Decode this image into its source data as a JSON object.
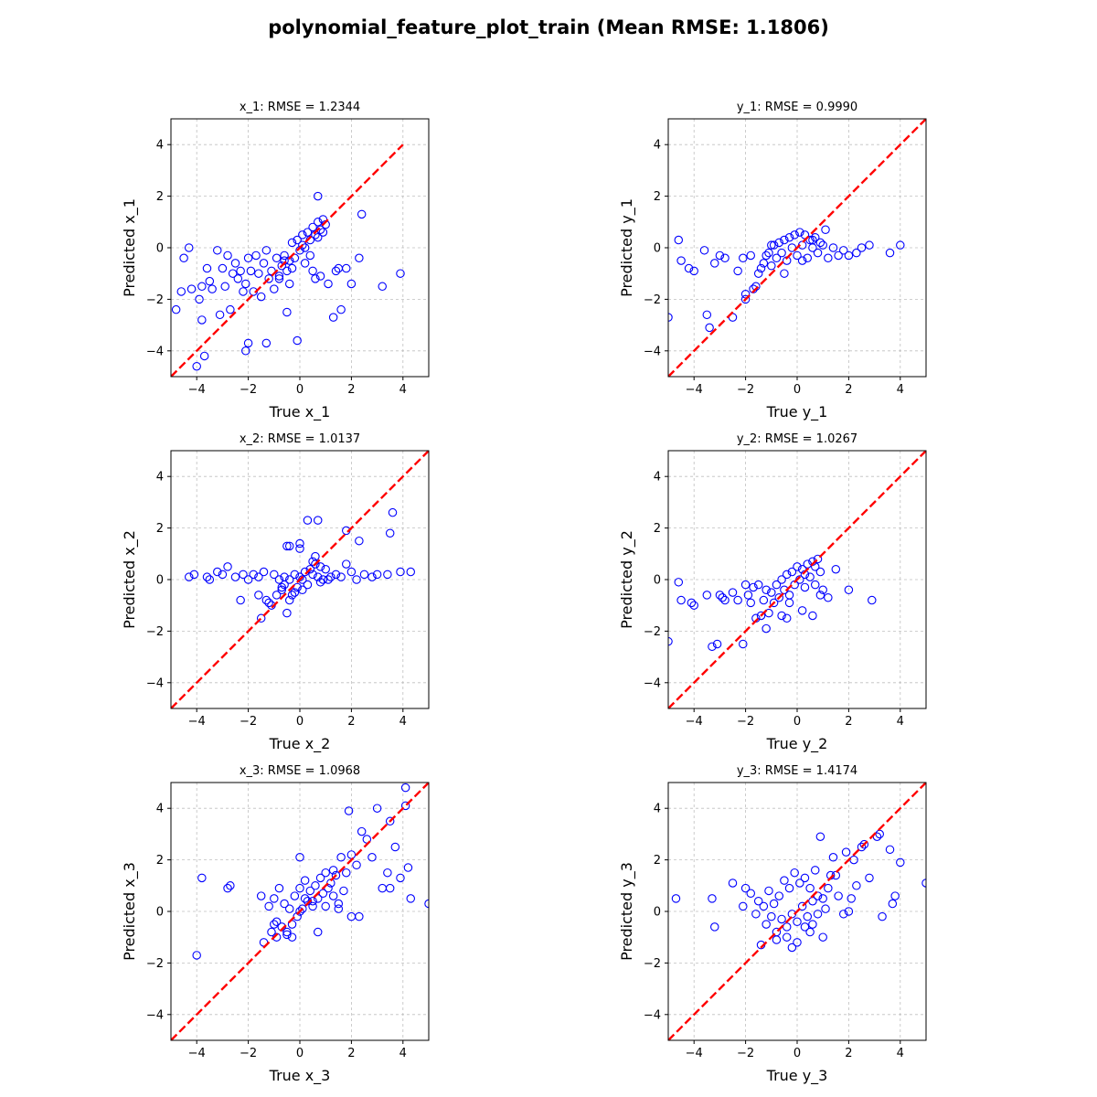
{
  "figure": {
    "title": "polynomial_feature_plot_train (Mean RMSE: 1.1806)",
    "marker_color": "#0000ff",
    "reference_line_color": "#ff0000",
    "grid_color": "#b0b0b0"
  },
  "chart_data": [
    {
      "type": "scatter",
      "title": "x_1: RMSE = 1.2344",
      "xlabel": "True x_1",
      "ylabel": "Predicted x_1",
      "xlim": [
        -5,
        5
      ],
      "ylim": [
        -5,
        5
      ],
      "xticks": [
        -4,
        -2,
        0,
        2,
        4
      ],
      "yticks": [
        -4,
        -2,
        0,
        2,
        4
      ],
      "grid": true,
      "reference_line": [
        [
          -5,
          -5
        ],
        [
          4,
          4
        ]
      ],
      "series": [
        {
          "x": [
            -4.8,
            -4.6,
            -4.5,
            -4.3,
            -4.2,
            -4.0,
            -3.9,
            -3.8,
            -3.7,
            -3.6,
            -3.5,
            -3.4,
            -3.2,
            -3.1,
            -3.0,
            -2.9,
            -2.8,
            -2.7,
            -2.6,
            -2.5,
            -2.4,
            -2.3,
            -2.2,
            -2.1,
            -2.0,
            -1.9,
            -1.8,
            -1.7,
            -1.6,
            -1.5,
            -1.4,
            -1.3,
            -1.2,
            -1.1,
            -1.0,
            -0.9,
            -0.8,
            -0.7,
            -0.6,
            -0.5,
            -0.4,
            -0.3,
            -0.2,
            -0.1,
            0.0,
            0.1,
            0.2,
            0.3,
            0.4,
            0.5,
            0.6,
            0.7,
            0.8,
            0.9,
            1.0,
            -0.6,
            -0.3,
            0.1,
            0.4,
            0.7,
            0.9,
            -0.8,
            -0.4,
            0.2,
            0.5,
            0.8,
            1.1,
            1.4,
            1.6,
            1.8,
            2.0,
            2.3,
            2.4,
            3.2,
            3.9,
            0.7,
            -0.1,
            -1.3,
            -2.1,
            -2.0,
            -3.8,
            1.3,
            1.5,
            0.6,
            -0.5
          ],
          "y": [
            -2.4,
            -1.7,
            -0.4,
            0.0,
            -1.6,
            -4.6,
            -2.0,
            -1.5,
            -4.2,
            -0.8,
            -1.3,
            -1.6,
            -0.1,
            -2.6,
            -0.8,
            -1.5,
            -0.3,
            -2.4,
            -1.0,
            -0.6,
            -1.2,
            -0.9,
            -1.7,
            -1.4,
            -0.4,
            -0.9,
            -1.7,
            -0.3,
            -1.0,
            -1.9,
            -0.6,
            -0.1,
            -1.2,
            -0.9,
            -1.6,
            -0.4,
            -1.1,
            -0.7,
            -0.3,
            -0.9,
            -0.5,
            0.2,
            -0.4,
            0.3,
            -0.1,
            0.5,
            0.0,
            0.6,
            0.3,
            0.8,
            0.5,
            1.0,
            0.7,
            1.1,
            0.9,
            -0.5,
            -0.8,
            0.1,
            -0.3,
            0.4,
            0.6,
            -1.2,
            -1.4,
            -0.6,
            -0.9,
            -1.1,
            -1.4,
            -0.9,
            -2.4,
            -0.8,
            -1.4,
            -0.4,
            1.3,
            -1.5,
            -1.0,
            2.0,
            -3.6,
            -3.7,
            -4.0,
            -3.7,
            -2.8,
            -2.7,
            -0.8,
            -1.2,
            -2.5
          ]
        }
      ]
    },
    {
      "type": "scatter",
      "title": "y_1: RMSE = 0.9990",
      "xlabel": "True y_1",
      "ylabel": "Predicted y_1",
      "xlim": [
        -5,
        5
      ],
      "ylim": [
        -5,
        5
      ],
      "xticks": [
        -4,
        -2,
        0,
        2,
        4
      ],
      "yticks": [
        -4,
        -2,
        0,
        2,
        4
      ],
      "grid": true,
      "reference_line": [
        [
          -5,
          -5
        ],
        [
          5,
          5
        ]
      ],
      "series": [
        {
          "x": [
            -5.0,
            -4.6,
            -4.5,
            -4.2,
            -4.0,
            -3.6,
            -3.5,
            -3.4,
            -3.2,
            -3.0,
            -2.8,
            -2.5,
            -2.3,
            -2.1,
            -2.0,
            -1.8,
            -1.7,
            -1.6,
            -1.5,
            -1.4,
            -1.3,
            -1.2,
            -1.1,
            -1.0,
            -0.9,
            -0.8,
            -0.7,
            -0.6,
            -0.5,
            -0.4,
            -0.3,
            -0.2,
            -0.1,
            0.0,
            0.1,
            0.2,
            0.3,
            0.4,
            0.5,
            0.6,
            0.7,
            0.8,
            0.9,
            1.0,
            1.2,
            1.4,
            1.6,
            1.8,
            2.0,
            2.3,
            2.5,
            2.8,
            3.6,
            4.0,
            -1.0,
            -0.5,
            0.2,
            0.6,
            1.1,
            -2.0
          ],
          "y": [
            -2.7,
            0.3,
            -0.5,
            -0.8,
            -0.9,
            -0.1,
            -2.6,
            -3.1,
            -0.6,
            -0.3,
            -0.4,
            -2.7,
            -0.9,
            -0.4,
            -2.0,
            -0.3,
            -1.6,
            -1.5,
            -1.0,
            -0.8,
            -0.6,
            -0.3,
            -0.2,
            -0.7,
            0.1,
            -0.4,
            0.2,
            -0.2,
            0.3,
            -0.5,
            0.4,
            0.0,
            0.5,
            -0.3,
            0.6,
            0.1,
            0.5,
            -0.4,
            0.3,
            0.0,
            0.4,
            -0.2,
            0.2,
            0.1,
            -0.4,
            0.0,
            -0.3,
            -0.1,
            -0.3,
            -0.2,
            0.0,
            0.1,
            -0.2,
            0.1,
            0.1,
            -1.0,
            -0.5,
            0.3,
            0.7,
            -1.8
          ]
        }
      ]
    },
    {
      "type": "scatter",
      "title": "x_2: RMSE = 1.0137",
      "xlabel": "True x_2",
      "ylabel": "Predicted x_2",
      "xlim": [
        -5,
        5
      ],
      "ylim": [
        -5,
        5
      ],
      "xticks": [
        -4,
        -2,
        0,
        2,
        4
      ],
      "yticks": [
        -4,
        -2,
        0,
        2,
        4
      ],
      "grid": true,
      "reference_line": [
        [
          -5,
          -5
        ],
        [
          5,
          5
        ]
      ],
      "series": [
        {
          "x": [
            -4.3,
            -4.1,
            -3.6,
            -3.5,
            -3.2,
            -3.0,
            -2.8,
            -2.5,
            -2.2,
            -2.0,
            -1.8,
            -1.6,
            -1.5,
            -1.4,
            -1.2,
            -1.1,
            -1.0,
            -0.9,
            -0.8,
            -0.7,
            -0.6,
            -0.5,
            -0.4,
            -0.3,
            -0.2,
            -0.1,
            0.0,
            0.1,
            0.2,
            0.3,
            0.4,
            0.5,
            0.6,
            0.7,
            0.8,
            0.9,
            1.0,
            1.2,
            1.4,
            1.6,
            1.8,
            2.0,
            2.2,
            2.5,
            2.8,
            3.0,
            3.4,
            3.9,
            4.3,
            -0.6,
            -0.4,
            -0.2,
            0.1,
            0.5,
            0.8,
            -0.7,
            -0.4,
            0.0,
            0.3,
            0.6,
            0.0,
            -0.5,
            0.7,
            1.1,
            1.8,
            2.3,
            3.5,
            3.6,
            -2.3,
            -1.3,
            -1.6
          ],
          "y": [
            0.1,
            0.2,
            0.1,
            0.0,
            0.3,
            0.2,
            0.5,
            0.1,
            0.2,
            0.0,
            0.2,
            0.1,
            -1.5,
            0.3,
            -0.9,
            -1.0,
            0.2,
            -0.6,
            0.0,
            -0.4,
            0.1,
            -1.3,
            0.0,
            -0.6,
            0.2,
            -0.3,
            0.1,
            0.0,
            0.3,
            -0.2,
            0.4,
            0.2,
            0.6,
            0.1,
            0.5,
            0.0,
            0.4,
            0.1,
            0.2,
            0.1,
            0.6,
            0.3,
            0.0,
            0.2,
            0.1,
            0.2,
            0.2,
            0.3,
            0.3,
            -0.2,
            -0.8,
            -0.5,
            -0.4,
            0.7,
            -0.1,
            -0.3,
            1.3,
            1.2,
            2.3,
            0.9,
            1.4,
            1.3,
            2.3,
            0.0,
            1.9,
            1.5,
            1.8,
            2.6,
            -0.8,
            -0.8,
            -0.6
          ]
        }
      ]
    },
    {
      "type": "scatter",
      "title": "y_2: RMSE = 1.0267",
      "xlabel": "True y_2",
      "ylabel": "Predicted y_2",
      "xlim": [
        -5,
        5
      ],
      "ylim": [
        -5,
        5
      ],
      "xticks": [
        -4,
        -2,
        0,
        2,
        4
      ],
      "yticks": [
        -4,
        -2,
        0,
        2,
        4
      ],
      "grid": true,
      "reference_line": [
        [
          -5,
          -5
        ],
        [
          5,
          5
        ]
      ],
      "series": [
        {
          "x": [
            -5.0,
            -4.6,
            -4.5,
            -4.1,
            -4.0,
            -3.5,
            -3.3,
            -3.1,
            -3.0,
            -2.9,
            -2.8,
            -2.5,
            -2.3,
            -2.1,
            -2.0,
            -1.9,
            -1.8,
            -1.7,
            -1.6,
            -1.5,
            -1.4,
            -1.3,
            -1.2,
            -1.1,
            -1.0,
            -0.9,
            -0.8,
            -0.7,
            -0.6,
            -0.5,
            -0.4,
            -0.3,
            -0.2,
            -0.1,
            0.0,
            0.1,
            0.2,
            0.3,
            0.4,
            0.5,
            0.6,
            0.7,
            0.8,
            0.9,
            1.0,
            1.2,
            1.5,
            2.0,
            2.9,
            -0.6,
            -0.3,
            0.2,
            0.6,
            0.9,
            -1.2,
            -0.4,
            0.3,
            0.7
          ],
          "y": [
            -2.4,
            -0.1,
            -0.8,
            -0.9,
            -1.0,
            -0.6,
            -2.6,
            -2.5,
            -0.6,
            -0.7,
            -0.8,
            -0.5,
            -0.8,
            -2.5,
            -0.2,
            -0.6,
            -0.9,
            -0.3,
            -1.5,
            -0.2,
            -1.4,
            -0.8,
            -0.4,
            -1.3,
            -0.5,
            -0.9,
            -0.2,
            -0.7,
            0.0,
            -0.4,
            0.2,
            -0.6,
            0.3,
            -0.2,
            0.5,
            0.0,
            0.4,
            -0.3,
            0.6,
            0.1,
            0.7,
            -0.2,
            0.8,
            0.3,
            -0.4,
            -0.7,
            0.4,
            -0.4,
            -0.8,
            -1.4,
            -0.9,
            -1.2,
            -1.4,
            -0.6,
            -1.9,
            -1.5,
            0.2,
            0.5
          ]
        }
      ]
    },
    {
      "type": "scatter",
      "title": "x_3: RMSE = 1.0968",
      "xlabel": "True x_3",
      "ylabel": "Predicted x_3",
      "xlim": [
        -5,
        5
      ],
      "ylim": [
        -5,
        5
      ],
      "xticks": [
        -4,
        -2,
        0,
        2,
        4
      ],
      "yticks": [
        -4,
        -2,
        0,
        2,
        4
      ],
      "grid": true,
      "reference_line": [
        [
          -5,
          -5
        ],
        [
          5,
          5
        ]
      ],
      "series": [
        {
          "x": [
            -4.0,
            -3.8,
            -2.8,
            -2.7,
            -1.5,
            -1.4,
            -1.2,
            -1.1,
            -1.0,
            -0.9,
            -0.8,
            -0.7,
            -0.6,
            -0.5,
            -0.4,
            -0.3,
            -0.2,
            -0.1,
            0.0,
            0.1,
            0.2,
            0.3,
            0.4,
            0.5,
            0.6,
            0.7,
            0.8,
            0.9,
            1.0,
            1.1,
            1.2,
            1.3,
            1.4,
            1.5,
            1.6,
            1.8,
            1.9,
            2.0,
            2.2,
            2.4,
            2.6,
            2.8,
            3.0,
            3.2,
            3.4,
            3.5,
            3.7,
            3.9,
            4.1,
            4.2,
            4.3,
            5.0,
            -1.0,
            -0.5,
            0.0,
            0.5,
            1.0,
            1.5,
            2.0,
            2.3,
            0.7,
            -0.3,
            -0.9,
            0.2,
            1.3,
            1.7,
            0.0,
            3.5,
            4.1
          ],
          "y": [
            -1.7,
            1.3,
            0.9,
            1.0,
            0.6,
            -1.2,
            0.2,
            -0.8,
            0.5,
            -0.4,
            0.9,
            -0.6,
            0.3,
            -0.8,
            0.1,
            -0.5,
            0.6,
            -0.2,
            0.9,
            0.1,
            1.2,
            0.4,
            0.8,
            0.2,
            1.0,
            0.5,
            1.3,
            0.7,
            1.5,
            0.9,
            1.1,
            1.6,
            1.4,
            0.3,
            2.1,
            1.5,
            3.9,
            2.2,
            1.8,
            3.1,
            2.8,
            2.1,
            4.0,
            0.9,
            1.5,
            0.9,
            2.5,
            1.3,
            4.1,
            1.7,
            0.5,
            0.3,
            -0.5,
            -0.9,
            0.0,
            0.4,
            0.2,
            0.1,
            -0.2,
            -0.2,
            -0.8,
            -1.0,
            -1.0,
            0.5,
            0.6,
            0.8,
            2.1,
            3.5,
            4.8
          ]
        }
      ]
    },
    {
      "type": "scatter",
      "title": "y_3: RMSE = 1.4174",
      "xlabel": "True y_3",
      "ylabel": "Predicted y_3",
      "xlim": [
        -5,
        5
      ],
      "ylim": [
        -5,
        5
      ],
      "xticks": [
        -4,
        -2,
        0,
        2,
        4
      ],
      "yticks": [
        -4,
        -2,
        0,
        2,
        4
      ],
      "grid": true,
      "reference_line": [
        [
          -5,
          -5
        ],
        [
          5,
          5
        ]
      ],
      "series": [
        {
          "x": [
            -4.7,
            -3.3,
            -3.2,
            -2.5,
            -2.1,
            -2.0,
            -1.8,
            -1.6,
            -1.5,
            -1.4,
            -1.3,
            -1.2,
            -1.1,
            -1.0,
            -0.9,
            -0.8,
            -0.7,
            -0.6,
            -0.5,
            -0.4,
            -0.3,
            -0.2,
            -0.1,
            0.0,
            0.1,
            0.2,
            0.3,
            0.4,
            0.5,
            0.6,
            0.7,
            0.8,
            0.9,
            1.0,
            1.2,
            1.4,
            1.5,
            1.6,
            1.8,
            1.9,
            2.0,
            2.1,
            2.2,
            2.3,
            2.5,
            2.6,
            2.8,
            3.1,
            3.2,
            3.3,
            3.6,
            3.7,
            3.8,
            4.0,
            5.0,
            -0.4,
            0.0,
            0.5,
            1.0,
            -0.8,
            0.3,
            0.8,
            1.1,
            -0.2,
            0.6,
            1.3
          ],
          "y": [
            0.5,
            0.5,
            -0.6,
            1.1,
            0.2,
            0.9,
            0.7,
            -0.1,
            0.4,
            -1.3,
            0.2,
            -0.5,
            0.8,
            -0.2,
            0.3,
            -0.8,
            0.6,
            -0.3,
            1.2,
            -0.6,
            0.9,
            -0.1,
            1.5,
            -0.4,
            1.1,
            0.2,
            1.3,
            -0.2,
            0.9,
            0.4,
            1.6,
            0.6,
            2.9,
            0.5,
            0.9,
            2.1,
            1.4,
            0.6,
            -0.1,
            2.3,
            0.0,
            0.5,
            2.0,
            1.0,
            2.5,
            2.6,
            1.3,
            2.9,
            3.0,
            -0.2,
            2.4,
            0.3,
            0.6,
            1.9,
            1.1,
            -1.0,
            -1.2,
            -0.8,
            -1.0,
            -1.1,
            -0.6,
            -0.1,
            0.1,
            -1.4,
            -0.5,
            1.4
          ]
        }
      ]
    }
  ]
}
